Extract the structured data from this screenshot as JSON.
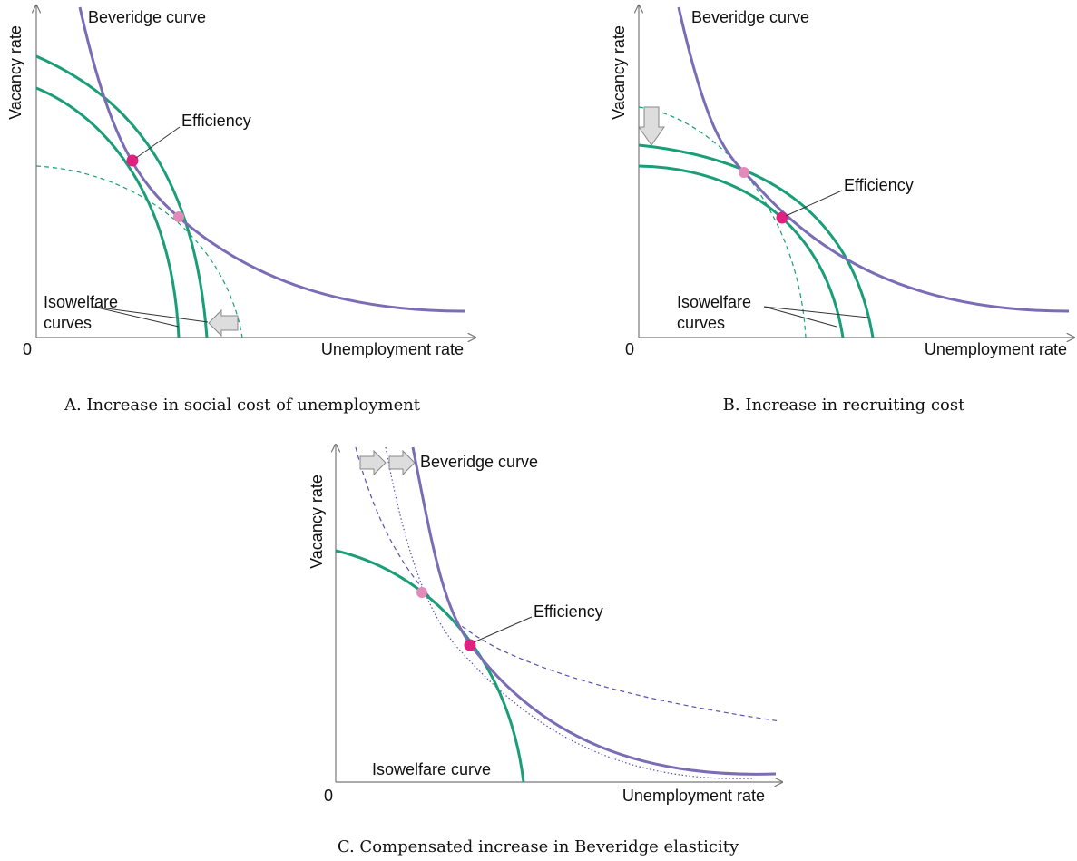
{
  "panels": [
    {
      "y_axis_label": "Vacancy rate",
      "x_axis_label": "Unemployment rate",
      "origin_label": "0",
      "beveridge_label": "Beveridge curve",
      "efficiency_label": "Efficiency",
      "isowelfare_label": [
        "Isowelfare",
        "curves"
      ],
      "caption": "A. Increase in social cost of unemployment"
    },
    {
      "y_axis_label": "Vacancy rate",
      "x_axis_label": "Unemployment rate",
      "origin_label": "0",
      "beveridge_label": "Beveridge curve",
      "efficiency_label": "Efficiency",
      "isowelfare_label": [
        "Isowelfare",
        "curves"
      ],
      "caption": "B. Increase in recruiting cost"
    },
    {
      "y_axis_label": "Vacancy rate",
      "x_axis_label": "Unemployment rate",
      "origin_label": "0",
      "beveridge_label": "Beveridge curve",
      "efficiency_label": "Efficiency",
      "isowelfare_label": [
        "Isowelfare curve"
      ],
      "caption": "C. Compensated increase in Beveridge elasticity"
    }
  ]
}
